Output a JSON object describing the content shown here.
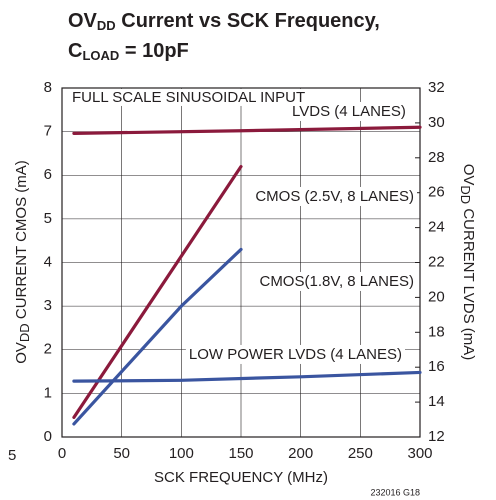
{
  "chart_data": {
    "type": "line",
    "title": [
      "OV",
      "DD",
      " Current vs SCK Frequency,",
      "C",
      "LOAD",
      " = 10pF"
    ],
    "xlabel": "SCK FREQUENCY (MHz)",
    "ylabel": [
      "OV",
      "DD",
      " CURRENT CMOS (mA)"
    ],
    "y2label": [
      "OV",
      "DD",
      " CURRENT LVDS (mA)"
    ],
    "annotations": [
      "FULL SCALE SINUSOIDAL INPUT",
      "232016 G18",
      "5"
    ],
    "xlim": [
      0,
      300
    ],
    "xticks": [
      0,
      50,
      100,
      150,
      200,
      250,
      300
    ],
    "ylim": [
      0,
      8
    ],
    "yticks": [
      0,
      1,
      2,
      3,
      4,
      5,
      6,
      7,
      8
    ],
    "y2lim": [
      12,
      32
    ],
    "y2ticks": [
      12,
      14,
      16,
      18,
      20,
      22,
      24,
      26,
      28,
      30,
      32
    ],
    "grid": true,
    "series": [
      {
        "name": "LVDS (4 LANES)",
        "color": "#8b1a3c",
        "axis": "y2",
        "x": [
          10,
          150,
          300
        ],
        "values": [
          29.4,
          29.55,
          29.75
        ]
      },
      {
        "name": "CMOS (2.5V, 8 LANES)",
        "color": "#8b1a3c",
        "x": [
          10,
          150
        ],
        "values": [
          0.45,
          6.2
        ]
      },
      {
        "name": "CMOS(1.8V, 8 LANES)",
        "color": "#3a55a0",
        "x": [
          10,
          100,
          150
        ],
        "values": [
          0.3,
          3.0,
          4.3
        ]
      },
      {
        "name": "LOW POWER LVDS (4 LANES)",
        "color": "#3a55a0",
        "axis": "y2",
        "x": [
          10,
          100,
          200,
          300
        ],
        "values": [
          15.2,
          15.25,
          15.45,
          15.7
        ]
      }
    ]
  }
}
